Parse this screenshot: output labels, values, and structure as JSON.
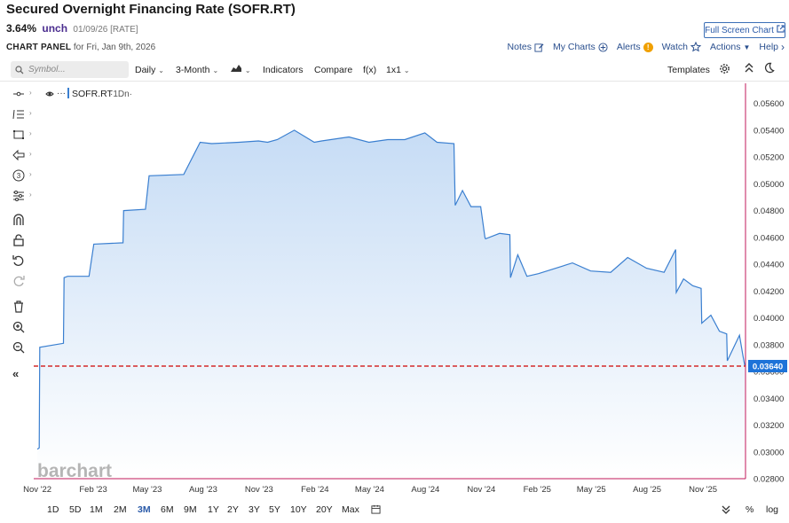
{
  "header": {
    "title": "Secured Overnight Financing Rate (SOFR.RT)",
    "price": "3.64%",
    "change": "unch",
    "meta": "01/09/26 [RATE]",
    "full_screen_label": "Full Screen Chart",
    "panel_label": "CHART PANEL",
    "panel_date": "for Fri, Jan 9th, 2026"
  },
  "panel_links": {
    "notes": "Notes",
    "my_charts": "My Charts",
    "alerts": "Alerts",
    "watch": "Watch",
    "actions": "Actions",
    "help": "Help"
  },
  "toolbar": {
    "search_placeholder": "Symbol...",
    "period": "Daily",
    "range": "3-Month",
    "indicators": "Indicators",
    "compare": "Compare",
    "fx": "f(x)",
    "layout": "1x1",
    "templates": "Templates"
  },
  "legend": {
    "symbol": "SOFR.RT",
    "period": "·1Dn·"
  },
  "watermark": "barchart",
  "bottom": {
    "ranges": [
      "1D",
      "5D",
      "1M",
      "2M",
      "3M",
      "6M",
      "9M",
      "1Y",
      "2Y",
      "3Y",
      "5Y",
      "10Y",
      "20Y",
      "Max"
    ],
    "active_range": "3M",
    "percent": "%",
    "log": "log"
  },
  "colors": {
    "line": "#3a7fd0",
    "fill_top": "#c6dcf5",
    "fill_bottom": "#ffffff",
    "last_line": "#d42a2a",
    "last_label_bg": "#1e73d8",
    "right_border": "#c2185b"
  },
  "chart_data": {
    "type": "area",
    "title": "Secured Overnight Financing Rate (SOFR.RT)",
    "ylim": [
      0.028,
      0.0575
    ],
    "y_ticks": [
      "0.05600",
      "0.05400",
      "0.05200",
      "0.05000",
      "0.04800",
      "0.04600",
      "0.04400",
      "0.04200",
      "0.04000",
      "0.03800",
      "0.03600",
      "0.03400",
      "0.03200",
      "0.03000",
      "0.02800"
    ],
    "x_ticks": [
      "Nov '22",
      "Feb '23",
      "May '23",
      "Aug '23",
      "Nov '23",
      "Feb '24",
      "May '24",
      "Aug '24",
      "Nov '24",
      "Feb '25",
      "May '25",
      "Aug '25",
      "Nov '25"
    ],
    "last_value": "0.03640",
    "series": [
      {
        "x": [
          "2022-11-01",
          "2022-11-04",
          "2022-11-05",
          "2022-12-14",
          "2022-12-15",
          "2022-12-21",
          "2023-01-25",
          "2023-02-02",
          "2023-03-22",
          "2023-03-23",
          "2023-04-28",
          "2023-05-04",
          "2023-06-30",
          "2023-07-27",
          "2023-08-15",
          "2023-09-29",
          "2023-10-31",
          "2023-11-15",
          "2023-12-01",
          "2023-12-29",
          "2024-01-31",
          "2024-02-12",
          "2024-03-28",
          "2024-04-30",
          "2024-05-31",
          "2024-06-28",
          "2024-07-31",
          "2024-08-20",
          "2024-09-17",
          "2024-09-19",
          "2024-10-01",
          "2024-10-15",
          "2024-10-31",
          "2024-11-07",
          "2024-11-08",
          "2024-12-01",
          "2024-12-18",
          "2024-12-19",
          "2024-12-31",
          "2025-01-15",
          "2025-02-03",
          "2025-03-31",
          "2025-04-30",
          "2025-06-02",
          "2025-06-30",
          "2025-07-31",
          "2025-08-29",
          "2025-09-17",
          "2025-09-18",
          "2025-09-30",
          "2025-10-15",
          "2025-10-29",
          "2025-10-30",
          "2025-11-14",
          "2025-11-28",
          "2025-12-10",
          "2025-12-11",
          "2025-12-31",
          "2026-01-06",
          "2026-01-09"
        ],
        "values": [
          0.0302,
          0.0303,
          0.0378,
          0.0381,
          0.043,
          0.0431,
          0.0431,
          0.0455,
          0.0456,
          0.048,
          0.0481,
          0.0506,
          0.0507,
          0.0531,
          0.053,
          0.0531,
          0.0532,
          0.0531,
          0.0533,
          0.054,
          0.0531,
          0.0532,
          0.0535,
          0.0531,
          0.0533,
          0.0533,
          0.0538,
          0.0531,
          0.053,
          0.0484,
          0.0495,
          0.0483,
          0.0483,
          0.046,
          0.0459,
          0.0463,
          0.0462,
          0.043,
          0.0447,
          0.0431,
          0.0433,
          0.0441,
          0.0435,
          0.0434,
          0.0445,
          0.0437,
          0.0434,
          0.0451,
          0.0419,
          0.0429,
          0.0424,
          0.0422,
          0.0396,
          0.0402,
          0.039,
          0.0388,
          0.0368,
          0.0387,
          0.0371,
          0.0364
        ]
      }
    ]
  }
}
